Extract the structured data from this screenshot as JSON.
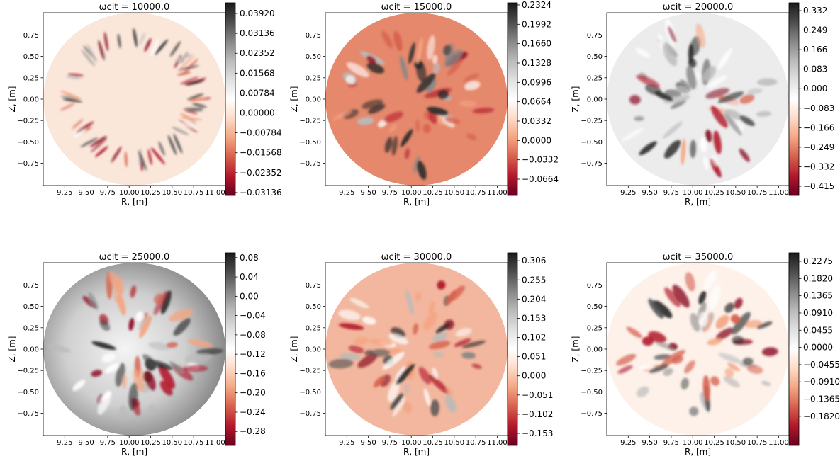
{
  "chart_data": [
    {
      "type": "heatmap",
      "title": "ωcit = 10000.0",
      "xlabel": "R, [m]",
      "ylabel": "Z, [m]",
      "xlim": [
        9.0,
        11.12
      ],
      "ylim": [
        -1.01,
        1.01
      ],
      "xticks": [
        9.25,
        {
          "value": 9.5,
          "label": "9.50"
        },
        9.75,
        {
          "value": 10,
          "label": "10.00"
        },
        10.25,
        {
          "value": 10.5,
          "label": "10.50"
        },
        10.75,
        {
          "value": 11,
          "label": "11.00"
        }
      ],
      "yticks": [
        {
          "value": -0.75,
          "label": "−0.75"
        },
        {
          "value": -0.5,
          "label": "−0.50"
        },
        {
          "value": -0.25,
          "label": "−0.25"
        },
        {
          "value": 0,
          "label": "0.00"
        },
        0.25,
        {
          "value": 0.5,
          "label": "0.50"
        },
        0.75
      ],
      "clim": [
        -0.0325,
        0.0434
      ],
      "colormap": "RdGy_r",
      "cticks": [
        {
          "value": -0.03136,
          "label": "−0.03136"
        },
        {
          "value": -0.02352,
          "label": "−0.02352"
        },
        {
          "value": -0.01568,
          "label": "−0.01568"
        },
        {
          "value": -0.00784,
          "label": "−0.00784"
        },
        {
          "value": 0,
          "label": "0.00000"
        },
        0.00784,
        0.01568,
        0.02352,
        0.03136,
        {
          "value": 0.0392,
          "label": "0.03920"
        }
      ]
    },
    {
      "type": "heatmap",
      "title": "ωcit = 15000.0",
      "xlabel": "R, [m]",
      "ylabel": "Z, [m]",
      "xlim": [
        9.0,
        11.12
      ],
      "ylim": [
        -1.01,
        1.01
      ],
      "xticks": [
        9.25,
        {
          "value": 9.5,
          "label": "9.50"
        },
        9.75,
        {
          "value": 10,
          "label": "10.00"
        },
        10.25,
        {
          "value": 10.5,
          "label": "10.50"
        },
        10.75,
        {
          "value": 11,
          "label": "11.00"
        }
      ],
      "yticks": [
        {
          "value": -0.75,
          "label": "−0.75"
        },
        {
          "value": -0.5,
          "label": "−0.50"
        },
        {
          "value": -0.25,
          "label": "−0.25"
        },
        {
          "value": 0,
          "label": "0.00"
        },
        0.25,
        {
          "value": 0.5,
          "label": "0.50"
        },
        0.75
      ],
      "clim": [
        -0.0943,
        0.236
      ],
      "colormap": "RdGy_r",
      "cticks": [
        {
          "value": -0.0664,
          "label": "−0.0664"
        },
        {
          "value": -0.0332,
          "label": "−0.0332"
        },
        {
          "value": 0,
          "label": "0.0000"
        },
        0.0332,
        0.0664,
        0.0996,
        0.1328,
        {
          "value": 0.166,
          "label": "0.1660"
        },
        0.1992,
        0.2324
      ]
    },
    {
      "type": "heatmap",
      "title": "ωcit = 20000.0",
      "xlabel": "R, [m]",
      "ylabel": "Z, [m]",
      "xlim": [
        9.0,
        11.12
      ],
      "ylim": [
        -1.01,
        1.01
      ],
      "xticks": [
        9.25,
        {
          "value": 9.5,
          "label": "9.50"
        },
        9.75,
        {
          "value": 10,
          "label": "10.00"
        },
        10.25,
        {
          "value": 10.5,
          "label": "10.50"
        },
        10.75,
        {
          "value": 11,
          "label": "11.00"
        }
      ],
      "yticks": [
        {
          "value": -0.75,
          "label": "−0.75"
        },
        {
          "value": -0.5,
          "label": "−0.50"
        },
        {
          "value": -0.25,
          "label": "−0.25"
        },
        {
          "value": 0,
          "label": "0.00"
        },
        0.25,
        {
          "value": 0.5,
          "label": "0.50"
        },
        0.75
      ],
      "clim": [
        -0.454,
        0.365
      ],
      "colormap": "RdGy_r",
      "cticks": [
        {
          "value": -0.415,
          "label": "−0.415"
        },
        {
          "value": -0.332,
          "label": "−0.332"
        },
        {
          "value": -0.249,
          "label": "−0.249"
        },
        {
          "value": -0.166,
          "label": "−0.166"
        },
        {
          "value": -0.083,
          "label": "−0.083"
        },
        {
          "value": 0,
          "label": "0.000"
        },
        0.083,
        0.166,
        0.249,
        0.332
      ]
    },
    {
      "type": "heatmap",
      "title": "ωcit = 25000.0",
      "xlabel": "R, [m]",
      "ylabel": "Z, [m]",
      "xlim": [
        9.0,
        11.12
      ],
      "ylim": [
        -1.01,
        1.01
      ],
      "xticks": [
        9.25,
        {
          "value": 9.5,
          "label": "9.50"
        },
        9.75,
        {
          "value": 10,
          "label": "10.00"
        },
        10.25,
        {
          "value": 10.5,
          "label": "10.50"
        },
        10.75,
        {
          "value": 11,
          "label": "11.00"
        }
      ],
      "yticks": [
        {
          "value": -0.75,
          "label": "−0.75"
        },
        {
          "value": -0.5,
          "label": "−0.50"
        },
        {
          "value": -0.25,
          "label": "−0.25"
        },
        {
          "value": 0,
          "label": "0.00"
        },
        0.25,
        {
          "value": 0.5,
          "label": "0.50"
        },
        0.75
      ],
      "clim": [
        -0.309,
        0.09
      ],
      "colormap": "RdGy_r",
      "cticks": [
        {
          "value": -0.28,
          "label": "−0.28"
        },
        {
          "value": -0.24,
          "label": "−0.24"
        },
        {
          "value": -0.2,
          "label": "−0.20"
        },
        {
          "value": -0.16,
          "label": "−0.16"
        },
        {
          "value": -0.12,
          "label": "−0.12"
        },
        {
          "value": -0.08,
          "label": "−0.08"
        },
        {
          "value": -0.04,
          "label": "−0.04"
        },
        {
          "value": 0,
          "label": "0.00"
        },
        0.04,
        0.08
      ]
    },
    {
      "type": "heatmap",
      "title": "ωcit = 30000.0",
      "xlabel": "R, [m]",
      "ylabel": "Z, [m]",
      "xlim": [
        9.0,
        11.12
      ],
      "ylim": [
        -1.01,
        1.01
      ],
      "xticks": [
        9.25,
        {
          "value": 9.5,
          "label": "9.50"
        },
        9.75,
        {
          "value": 10,
          "label": "10.00"
        },
        10.25,
        {
          "value": 10.5,
          "label": "10.50"
        },
        10.75,
        {
          "value": 11,
          "label": "11.00"
        }
      ],
      "yticks": [
        {
          "value": -0.75,
          "label": "−0.75"
        },
        {
          "value": -0.5,
          "label": "−0.50"
        },
        {
          "value": -0.25,
          "label": "−0.25"
        },
        {
          "value": 0,
          "label": "0.00"
        },
        0.25,
        {
          "value": 0.5,
          "label": "0.50"
        },
        0.75
      ],
      "clim": [
        -0.185,
        0.327
      ],
      "colormap": "RdGy_r",
      "cticks": [
        {
          "value": -0.153,
          "label": "−0.153"
        },
        {
          "value": -0.102,
          "label": "−0.102"
        },
        {
          "value": -0.051,
          "label": "−0.051"
        },
        {
          "value": 0,
          "label": "0.000"
        },
        0.051,
        0.102,
        0.153,
        0.204,
        0.255,
        0.306
      ]
    },
    {
      "type": "heatmap",
      "title": "ωcit = 35000.0",
      "xlabel": "R, [m]",
      "ylabel": "Z, [m]",
      "xlim": [
        9.0,
        11.12
      ],
      "ylim": [
        -1.01,
        1.01
      ],
      "xticks": [
        9.25,
        {
          "value": 9.5,
          "label": "9.50"
        },
        9.75,
        {
          "value": 10,
          "label": "10.00"
        },
        10.25,
        {
          "value": 10.5,
          "label": "10.50"
        },
        10.75,
        {
          "value": 11,
          "label": "11.00"
        }
      ],
      "yticks": [
        {
          "value": -0.75,
          "label": "−0.75"
        },
        {
          "value": -0.5,
          "label": "−0.50"
        },
        {
          "value": -0.25,
          "label": "−0.25"
        },
        {
          "value": 0,
          "label": "0.00"
        },
        0.25,
        {
          "value": 0.5,
          "label": "0.50"
        },
        0.75
      ],
      "clim": [
        -0.259,
        0.25
      ],
      "colormap": "RdGy_r",
      "cticks": [
        {
          "value": -0.182,
          "label": "−0.1820"
        },
        {
          "value": -0.1365,
          "label": "−0.1365"
        },
        {
          "value": -0.091,
          "label": "−0.0910"
        },
        {
          "value": -0.0455,
          "label": "−0.0455"
        },
        {
          "value": 0,
          "label": "0.0000"
        },
        0.0455,
        {
          "value": 0.091,
          "label": "0.0910"
        },
        0.1365,
        {
          "value": 0.182,
          "label": "0.1820"
        },
        0.2275
      ]
    }
  ]
}
